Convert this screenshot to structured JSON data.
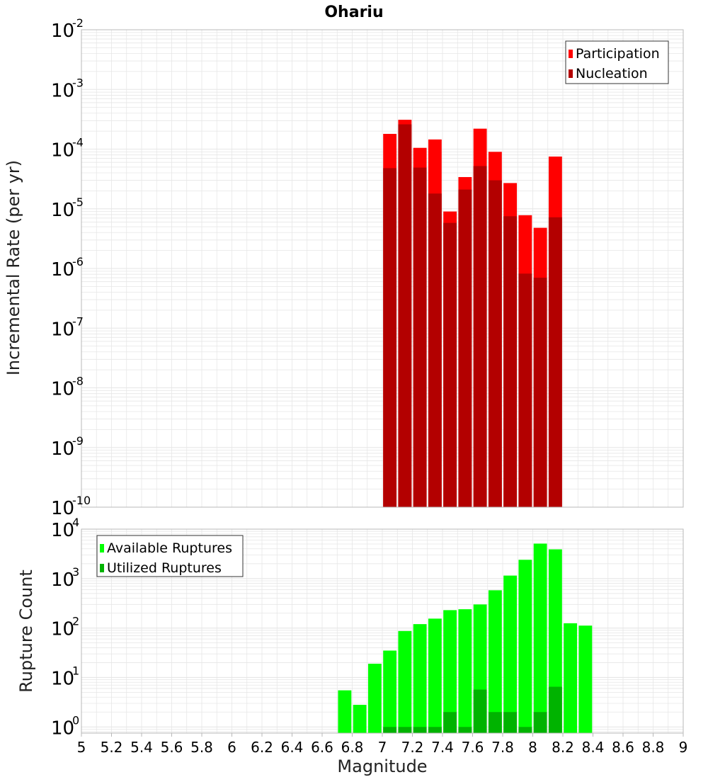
{
  "title": "Ohariu",
  "xlabel": "Magnitude",
  "colors": {
    "participation": "#ff0000",
    "nucleation": "#b30000",
    "available": "#00ff00",
    "utilized": "#00b300",
    "grid": "#e6e6e6",
    "axis": "#b8b8b8"
  },
  "chart_data": [
    {
      "type": "bar",
      "ylabel": "Incremental Rate (per yr)",
      "yscale": "log",
      "ylim": [
        1e-10,
        0.01
      ],
      "xlim": [
        5,
        9
      ],
      "y_tick_exponents": [
        "-2",
        "-3",
        "-4",
        "-5",
        "-6",
        "-7",
        "-8",
        "-9",
        "-10"
      ],
      "legend_position": "top-right",
      "bin_width": 0.1,
      "x": [
        7.05,
        7.15,
        7.25,
        7.35,
        7.45,
        7.55,
        7.65,
        7.75,
        7.85,
        7.95,
        8.05,
        8.15
      ],
      "series": [
        {
          "name": "Participation",
          "values": [
            0.00018,
            0.00031,
            0.000105,
            0.000145,
            9e-06,
            3.4e-05,
            0.00022,
            9e-05,
            2.7e-05,
            7.8e-06,
            4.8e-06,
            7.5e-05
          ]
        },
        {
          "name": "Nucleation",
          "values": [
            4.8e-05,
            0.00026,
            4.9e-05,
            1.8e-05,
            5.8e-06,
            2.1e-05,
            5.2e-05,
            3e-05,
            7.5e-06,
            8.2e-07,
            7e-07,
            7.2e-06
          ]
        }
      ]
    },
    {
      "type": "bar",
      "ylabel": "Rupture Count",
      "yscale": "log",
      "ylim": [
        0.75,
        10000
      ],
      "xlim": [
        5,
        9
      ],
      "y_tick_exponents": [
        "4",
        "3",
        "2",
        "1",
        "0"
      ],
      "x_ticks": [
        "5",
        "5.2",
        "5.4",
        "5.6",
        "5.8",
        "6",
        "6.2",
        "6.4",
        "6.6",
        "6.8",
        "7",
        "7.2",
        "7.4",
        "7.6",
        "7.8",
        "8",
        "8.2",
        "8.4",
        "8.6",
        "8.8",
        "9"
      ],
      "legend_position": "top-left",
      "bin_width": 0.1,
      "x": [
        6.75,
        6.85,
        6.95,
        7.05,
        7.15,
        7.25,
        7.35,
        7.45,
        7.55,
        7.65,
        7.75,
        7.85,
        7.95,
        8.05,
        8.15,
        8.25,
        8.35
      ],
      "series": [
        {
          "name": "Available Ruptures",
          "values": [
            5.5,
            2.8,
            19,
            35,
            87,
            120,
            155,
            230,
            240,
            300,
            580,
            1150,
            2400,
            5100,
            3900,
            125,
            112
          ]
        },
        {
          "name": "Utilized Ruptures",
          "values": [
            0,
            0,
            0,
            1,
            1,
            1,
            1,
            2,
            1,
            5.7,
            2,
            2,
            1,
            2,
            6.5,
            0,
            0
          ]
        }
      ]
    }
  ]
}
